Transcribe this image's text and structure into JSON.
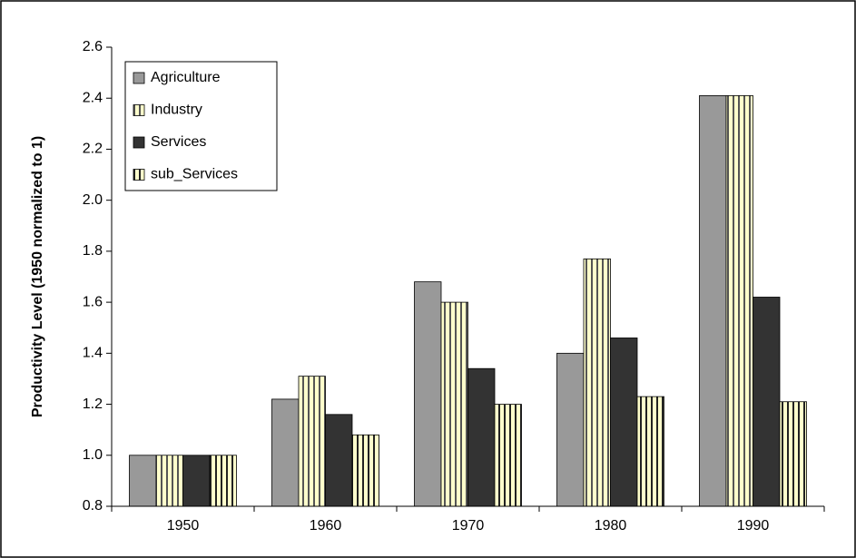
{
  "chart_data": {
    "type": "bar",
    "ylabel": "Productivity Level (1950 normalized to 1)",
    "categories": [
      "1950",
      "1960",
      "1970",
      "1980",
      "1990"
    ],
    "series": [
      {
        "name": "Agriculture",
        "color": "#999999",
        "values": [
          1.0,
          1.22,
          1.68,
          1.4,
          2.41
        ]
      },
      {
        "name": "Industry",
        "color": "#ffffcc",
        "hatch": "vertical",
        "values": [
          1.0,
          1.31,
          1.6,
          1.77,
          2.41
        ]
      },
      {
        "name": "Services",
        "color": "#333333",
        "values": [
          1.0,
          1.16,
          1.34,
          1.46,
          1.62
        ]
      },
      {
        "name": "sub_Services",
        "color": "#ffffcc",
        "hatch": "vertical",
        "values": [
          1.0,
          1.08,
          1.2,
          1.23,
          1.21
        ]
      }
    ],
    "ylim": [
      0.8,
      2.6
    ],
    "yticks": [
      {
        "value": 0.8,
        "label": "0.8"
      },
      {
        "value": 1.0,
        "label": "1.0"
      },
      {
        "value": 1.2,
        "label": "1.2"
      },
      {
        "value": 1.4,
        "label": "1.4"
      },
      {
        "value": 1.6,
        "label": "1.6"
      },
      {
        "value": 1.8,
        "label": "1.8"
      },
      {
        "value": 2.0,
        "label": "2.0"
      },
      {
        "value": 2.2,
        "label": "2.2"
      },
      {
        "value": 2.4,
        "label": "2.4"
      },
      {
        "value": 2.6,
        "label": "2.6"
      }
    ],
    "legend": "upper left"
  }
}
